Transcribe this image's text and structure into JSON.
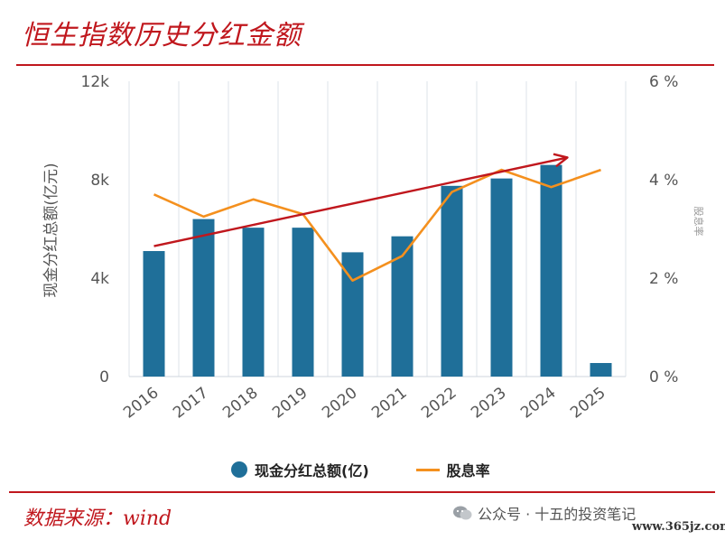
{
  "header": {
    "title": "恒生指数历史分红金额"
  },
  "footer": {
    "source": "数据来源：wind",
    "watermark": "公众号 · 十五的投资笔记",
    "site": "www.365jz.com"
  },
  "legend": {
    "bar_label": "现金分红总额(亿)",
    "line_label": "股息率"
  },
  "colors": {
    "bar": "#1f6f99",
    "line": "#f4901e",
    "trend": "#c0171d",
    "accent": "#c0171d"
  },
  "chart_data": {
    "type": "bar",
    "categories": [
      "2016",
      "2017",
      "2018",
      "2019",
      "2020",
      "2021",
      "2022",
      "2023",
      "2024",
      "2025"
    ],
    "series": [
      {
        "name": "现金分红总额(亿)",
        "type": "bar",
        "axis": "left",
        "values": [
          5100,
          6400,
          6050,
          6050,
          5050,
          5700,
          7750,
          8050,
          8600,
          550
        ]
      },
      {
        "name": "股息率",
        "type": "line",
        "axis": "right",
        "values": [
          3.7,
          3.25,
          3.6,
          3.3,
          1.95,
          2.45,
          3.75,
          4.2,
          3.85,
          4.2
        ]
      }
    ],
    "ylabel": "现金分红总额(亿元)",
    "ylabel_right": "股息率",
    "ylim": [
      0,
      12000
    ],
    "y2lim": [
      0,
      6
    ],
    "yticks": [
      "0",
      "4k",
      "8k",
      "12k"
    ],
    "y2ticks": [
      "0 %",
      "2 %",
      "4 %",
      "6 %"
    ],
    "trend_arrow": {
      "from": [
        "2016",
        2.65
      ],
      "to": [
        "2024",
        4.45
      ]
    },
    "grid": "vertical",
    "legend_position": "bottom"
  }
}
